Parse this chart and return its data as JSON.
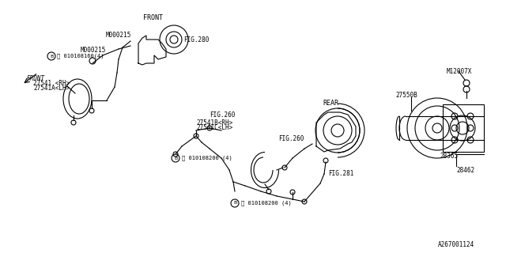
{
  "title": "",
  "bg_color": "#ffffff",
  "line_color": "#000000",
  "fig_id": "A267001124",
  "labels": {
    "27541_RH": "27541 <RH>",
    "27541A_LH": "27541A<LH>",
    "27541B_RH": "27541B<RH>",
    "27541C_LH": "27541C<LH>",
    "010108200_top": "Ⓑ 010108200 (4)",
    "010108200_mid": "Ⓑ 010108200 (4)",
    "010108160": "Ⓑ 010108160(4)",
    "M000215_top": "M000215",
    "M000215_bot": "M000215",
    "FIG260_top": "FIG.260",
    "FIG260_bot": "FIG.260",
    "FIG281": "FIG.281",
    "FIG280": "FIG.280",
    "REAR": "REAR",
    "FRONT_label": "FRONT",
    "FRONT_arrow": "FRONT",
    "27550B": "27550B",
    "28462": "28462",
    "28365": "28365",
    "M12007X": "M12007X"
  }
}
